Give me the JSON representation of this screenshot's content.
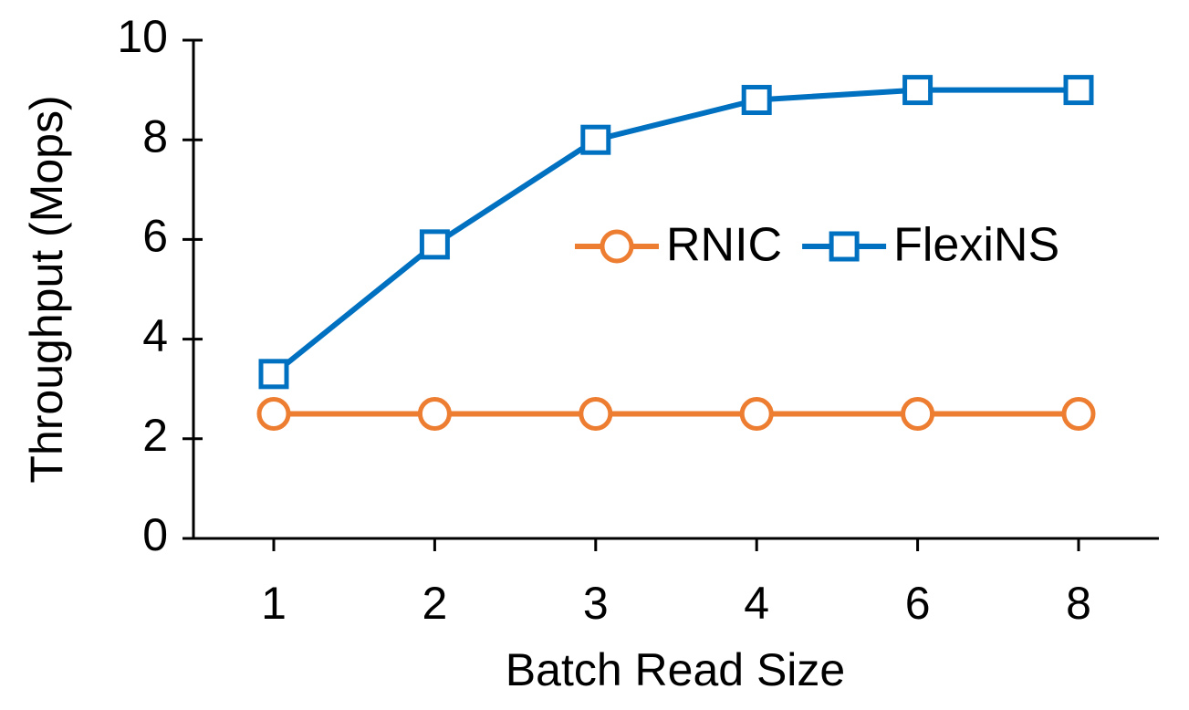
{
  "chart_data": {
    "type": "line",
    "x_label": "Batch Read Size",
    "y_label": "Throughput (Mops)",
    "categories": [
      "1",
      "2",
      "3",
      "4",
      "6",
      "8"
    ],
    "series": [
      {
        "name": "RNIC",
        "color": "#ED7D31",
        "marker": "circle",
        "values": [
          2.5,
          2.5,
          2.5,
          2.5,
          2.5,
          2.5
        ]
      },
      {
        "name": "FlexiNS",
        "color": "#0070C0",
        "marker": "square",
        "values": [
          3.3,
          5.9,
          8.0,
          8.8,
          9.0,
          9.0
        ]
      }
    ],
    "ylim": [
      0,
      10
    ],
    "yticks": [
      0,
      2,
      4,
      6,
      8,
      10
    ],
    "grid": false,
    "legend": "center right"
  }
}
